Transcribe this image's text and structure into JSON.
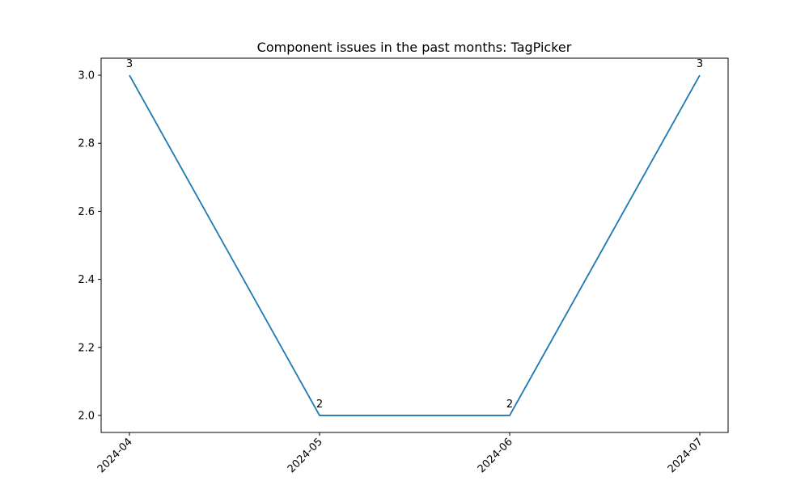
{
  "chart_data": {
    "type": "line",
    "title": "Component issues in the past months: TagPicker",
    "xlabel": "",
    "ylabel": "",
    "categories": [
      "2024-04",
      "2024-05",
      "2024-06",
      "2024-07"
    ],
    "series": [
      {
        "values": [
          3,
          2,
          2,
          3
        ],
        "color": "#1f77b4"
      }
    ],
    "data_labels": [
      "3",
      "2",
      "2",
      "3"
    ],
    "ylim": [
      1.95,
      3.05
    ],
    "yticks": [
      2.0,
      2.2,
      2.4,
      2.6,
      2.8,
      3.0
    ],
    "ytick_labels": [
      "2.0",
      "2.2",
      "2.4",
      "2.6",
      "2.8",
      "3.0"
    ],
    "x_tick_rotation_deg": 45,
    "grid": false,
    "legend": "none"
  }
}
